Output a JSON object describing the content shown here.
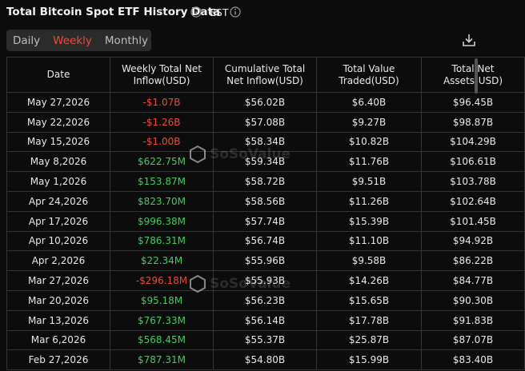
{
  "header": {
    "title": "Total Bitcoin Spot ETF History Data",
    "timezone": "EST"
  },
  "tabs": {
    "items": [
      "Daily",
      "Weekly",
      "Monthly"
    ],
    "active": 1
  },
  "watermark": "SoSoValue",
  "table": {
    "columns": [
      "Date",
      "Weekly Total Net Inflow(USD)",
      "Cumulative Total Net Inflow(USD)",
      "Total Value Traded(USD)",
      "Total Net Assets(USD)"
    ],
    "rows": [
      [
        "May 27,2026",
        "-$1.07B",
        "$56.02B",
        "$6.40B",
        "$96.45B"
      ],
      [
        "May 22,2026",
        "-$1.26B",
        "$57.08B",
        "$9.27B",
        "$98.87B"
      ],
      [
        "May 15,2026",
        "-$1.00B",
        "$58.34B",
        "$10.82B",
        "$104.29B"
      ],
      [
        "May 8,2026",
        "$622.75M",
        "$59.34B",
        "$11.76B",
        "$106.61B"
      ],
      [
        "May 1,2026",
        "$153.87M",
        "$58.72B",
        "$9.51B",
        "$103.78B"
      ],
      [
        "Apr 24,2026",
        "$823.70M",
        "$58.56B",
        "$11.26B",
        "$102.64B"
      ],
      [
        "Apr 17,2026",
        "$996.38M",
        "$57.74B",
        "$15.39B",
        "$101.45B"
      ],
      [
        "Apr 10,2026",
        "$786.31M",
        "$56.74B",
        "$11.10B",
        "$94.92B"
      ],
      [
        "Apr 2,2026",
        "$22.34M",
        "$55.96B",
        "$9.58B",
        "$86.22B"
      ],
      [
        "Mar 27,2026",
        "-$296.18M",
        "$55.93B",
        "$14.26B",
        "$84.77B"
      ],
      [
        "Mar 20,2026",
        "$95.18M",
        "$56.23B",
        "$15.65B",
        "$90.30B"
      ],
      [
        "Mar 13,2026",
        "$767.33M",
        "$56.14B",
        "$17.78B",
        "$91.83B"
      ],
      [
        "Mar 6,2026",
        "$568.45M",
        "$55.37B",
        "$25.87B",
        "$87.07B"
      ],
      [
        "Feb 27,2026",
        "$787.31M",
        "$54.80B",
        "$15.99B",
        "$83.40B"
      ]
    ]
  }
}
